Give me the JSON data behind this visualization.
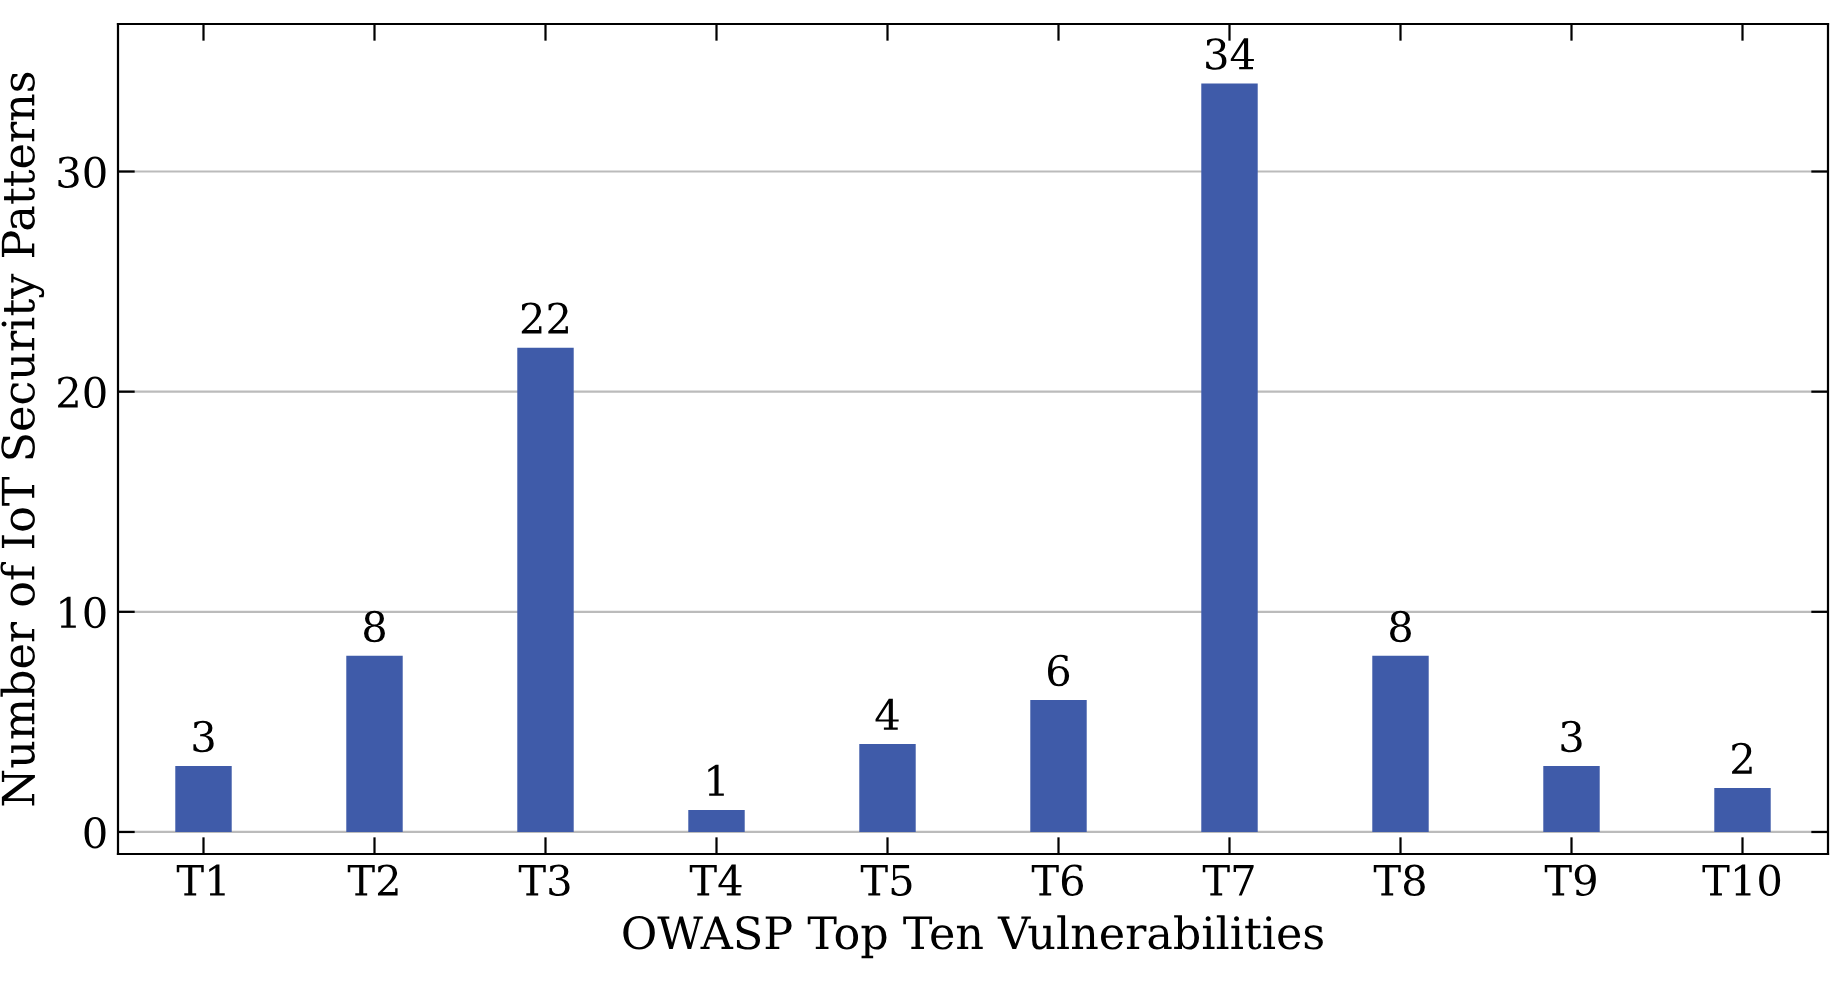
{
  "chart_data": {
    "type": "bar",
    "xlabel": "OWASP Top Ten Vulnerabilities",
    "ylabel": "Number of IoT Security Patterns",
    "categories": [
      "T1",
      "T2",
      "T3",
      "T4",
      "T5",
      "T6",
      "T7",
      "T8",
      "T9",
      "T10"
    ],
    "values": [
      3,
      8,
      22,
      1,
      4,
      6,
      34,
      8,
      3,
      2
    ],
    "color": "#3f5ba9",
    "ylim": [
      -1,
      36.7
    ],
    "yticks": [
      0,
      10,
      20,
      30
    ],
    "grid": "y",
    "data_labels": true
  }
}
